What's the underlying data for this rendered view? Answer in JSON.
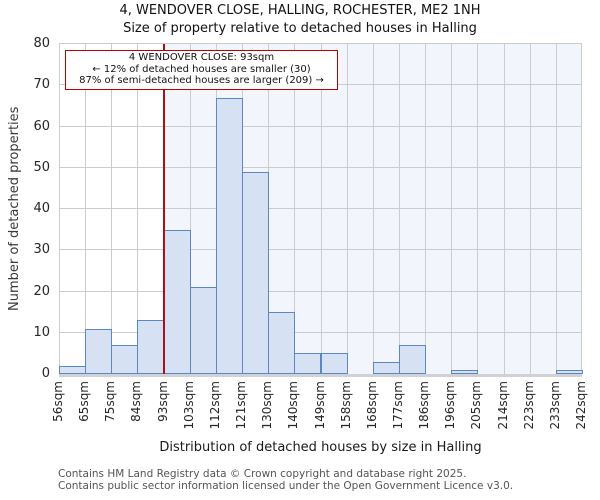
{
  "title": "4, WENDOVER CLOSE, HALLING, ROCHESTER, ME2 1NH",
  "subtitle": "Size of property relative to detached houses in Halling",
  "annotation": {
    "line1": "4 WENDOVER CLOSE: 93sqm",
    "line2": "← 12% of detached houses are smaller (30)",
    "line3": "87% of semi-detached houses are larger (209) →"
  },
  "footer": {
    "line1": "Contains HM Land Registry data © Crown copyright and database right 2025.",
    "line2": "Contains public sector information licensed under the Open Government Licence v3.0."
  },
  "chart_data": {
    "type": "bar",
    "title": "4, WENDOVER CLOSE, HALLING, ROCHESTER, ME2 1NH",
    "subtitle": "Size of property relative to detached houses in Halling",
    "xlabel": "Distribution of detached houses by size in Halling",
    "ylabel": "Number of detached properties",
    "bin_edges_sqm": [
      56,
      65,
      75,
      84,
      93,
      103,
      112,
      121,
      130,
      140,
      149,
      158,
      168,
      177,
      186,
      196,
      205,
      214,
      223,
      233,
      242
    ],
    "tick_labels": [
      "56sqm",
      "65sqm",
      "75sqm",
      "84sqm",
      "93sqm",
      "103sqm",
      "112sqm",
      "121sqm",
      "130sqm",
      "140sqm",
      "149sqm",
      "158sqm",
      "168sqm",
      "177sqm",
      "186sqm",
      "196sqm",
      "205sqm",
      "214sqm",
      "223sqm",
      "233sqm",
      "242sqm"
    ],
    "values": [
      2,
      11,
      7,
      13,
      35,
      21,
      67,
      49,
      15,
      5,
      5,
      0,
      3,
      7,
      0,
      1,
      0,
      0,
      0,
      1
    ],
    "ylim": [
      0,
      80
    ],
    "yticks": [
      0,
      10,
      20,
      30,
      40,
      50,
      60,
      70,
      80
    ],
    "grid": "on",
    "legend": "none",
    "marker_value_sqm": 93,
    "marker_bin_index": 4,
    "colors": {
      "bar_fill": "#d6e2f3",
      "bar_border": "#5b87c5",
      "marker_line": "#aa1116",
      "annotation_border": "#bb0000",
      "shade_right_of_marker": "#f2f5fc",
      "gridline": "#cccccc",
      "axis_spine": "#d2d2d6",
      "footer_text": "#555555"
    }
  }
}
